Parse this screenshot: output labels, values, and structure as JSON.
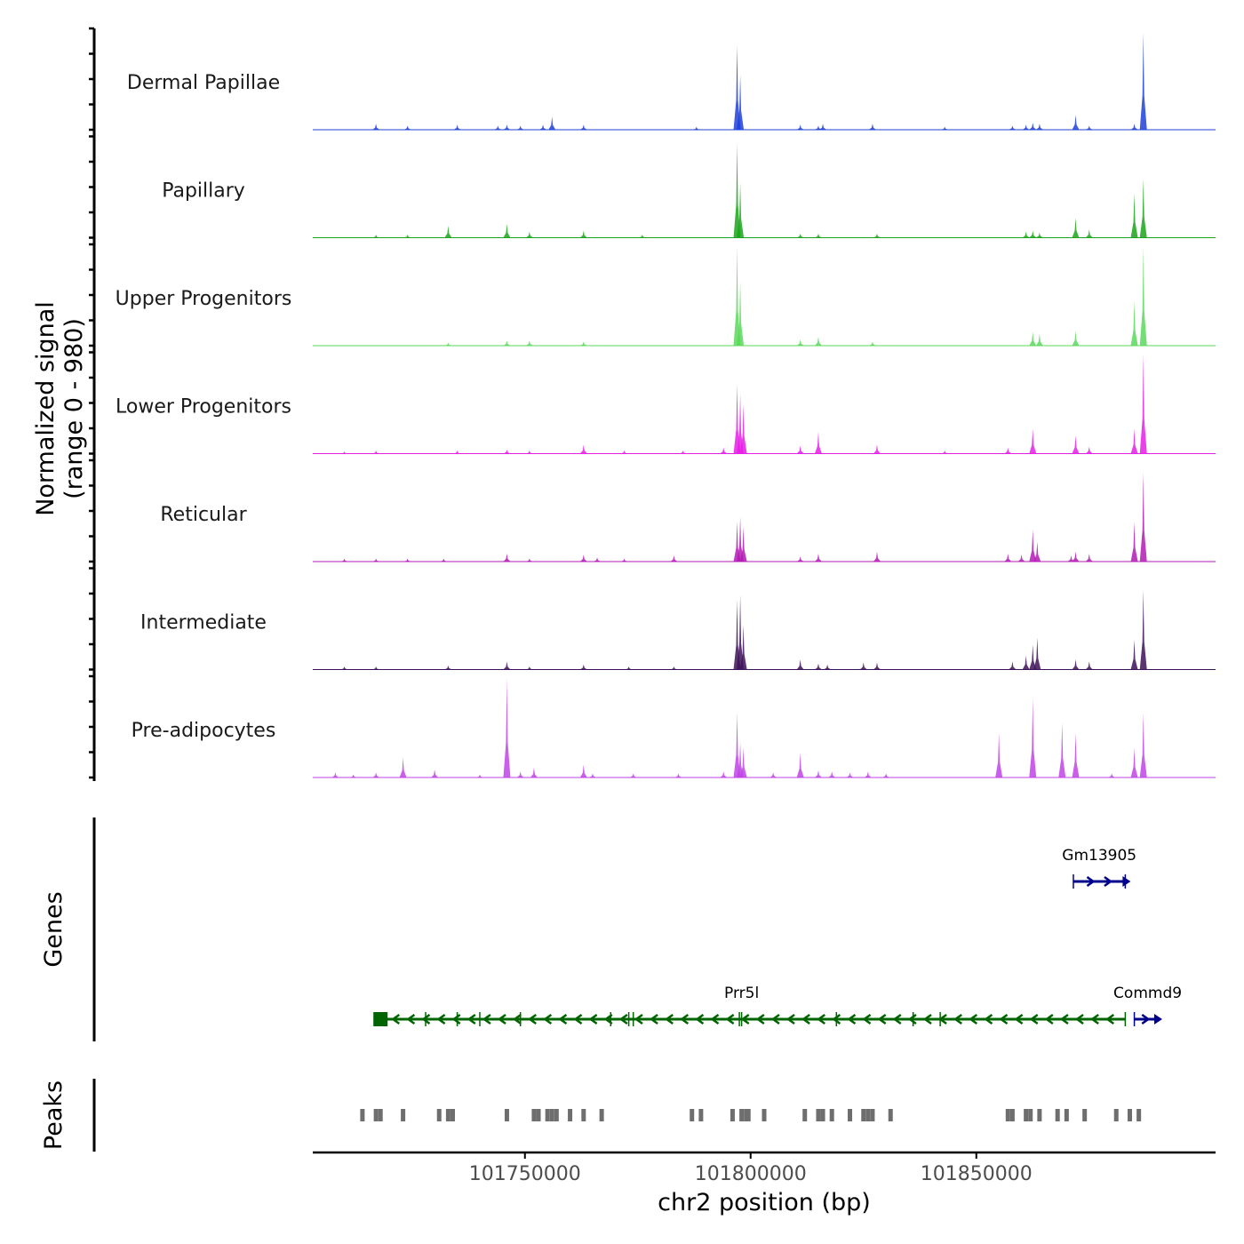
{
  "chart_data": {
    "type": "area",
    "title": "",
    "xlabel": "chr2 position (bp)",
    "ylabel": "Normalized signal\n(range 0 - 980)",
    "xlim": [
      101703000,
      101903000
    ],
    "x_ticks": [
      "101750000",
      "101800000",
      "101850000"
    ],
    "x_tick_values": [
      101750000,
      101800000,
      101850000
    ],
    "signal_range": [
      0,
      980
    ],
    "tracks": [
      {
        "name": "Dermal Papillae",
        "color": "#1e3fd9",
        "peaks": [
          [
            101717000,
            0.06
          ],
          [
            101724000,
            0.04
          ],
          [
            101735000,
            0.05
          ],
          [
            101744000,
            0.04
          ],
          [
            101746000,
            0.05
          ],
          [
            101749000,
            0.04
          ],
          [
            101754000,
            0.05
          ],
          [
            101756000,
            0.13
          ],
          [
            101763000,
            0.05
          ],
          [
            101788000,
            0.03
          ],
          [
            101797000,
            0.85
          ],
          [
            101797700,
            0.55
          ],
          [
            101811000,
            0.05
          ],
          [
            101815000,
            0.04
          ],
          [
            101816000,
            0.06
          ],
          [
            101827000,
            0.06
          ],
          [
            101843000,
            0.03
          ],
          [
            101858000,
            0.04
          ],
          [
            101861000,
            0.05
          ],
          [
            101862500,
            0.07
          ],
          [
            101864000,
            0.06
          ],
          [
            101872000,
            0.15
          ],
          [
            101875000,
            0.04
          ],
          [
            101885000,
            0.06
          ],
          [
            101887000,
            0.98
          ]
        ]
      },
      {
        "name": "Papillary",
        "color": "#1aa51a",
        "peaks": [
          [
            101717000,
            0.03
          ],
          [
            101724000,
            0.03
          ],
          [
            101733000,
            0.12
          ],
          [
            101746000,
            0.14
          ],
          [
            101751000,
            0.06
          ],
          [
            101763000,
            0.07
          ],
          [
            101776000,
            0.03
          ],
          [
            101797000,
            0.95
          ],
          [
            101797700,
            0.55
          ],
          [
            101811000,
            0.04
          ],
          [
            101815000,
            0.04
          ],
          [
            101828000,
            0.04
          ],
          [
            101861000,
            0.06
          ],
          [
            101862500,
            0.07
          ],
          [
            101864000,
            0.05
          ],
          [
            101872000,
            0.2
          ],
          [
            101875000,
            0.08
          ],
          [
            101885000,
            0.45
          ],
          [
            101887000,
            0.6
          ]
        ]
      },
      {
        "name": "Upper Progenitors",
        "color": "#5ad85a",
        "peaks": [
          [
            101733000,
            0.03
          ],
          [
            101746000,
            0.05
          ],
          [
            101751000,
            0.05
          ],
          [
            101763000,
            0.04
          ],
          [
            101797000,
            1.0
          ],
          [
            101797700,
            0.65
          ],
          [
            101811000,
            0.06
          ],
          [
            101815000,
            0.09
          ],
          [
            101827000,
            0.04
          ],
          [
            101862500,
            0.14
          ],
          [
            101864000,
            0.12
          ],
          [
            101872000,
            0.15
          ],
          [
            101885000,
            0.45
          ],
          [
            101887000,
            1.0
          ]
        ]
      },
      {
        "name": "Lower Progenitors",
        "color": "#e61ee6",
        "peaks": [
          [
            101710000,
            0.02
          ],
          [
            101717000,
            0.03
          ],
          [
            101735000,
            0.03
          ],
          [
            101746000,
            0.04
          ],
          [
            101751000,
            0.03
          ],
          [
            101763000,
            0.09
          ],
          [
            101772000,
            0.03
          ],
          [
            101785000,
            0.03
          ],
          [
            101794000,
            0.06
          ],
          [
            101797000,
            0.7
          ],
          [
            101797700,
            0.6
          ],
          [
            101798400,
            0.5
          ],
          [
            101811000,
            0.08
          ],
          [
            101815000,
            0.22
          ],
          [
            101828000,
            0.09
          ],
          [
            101843000,
            0.03
          ],
          [
            101857000,
            0.06
          ],
          [
            101862500,
            0.25
          ],
          [
            101872000,
            0.18
          ],
          [
            101875000,
            0.07
          ],
          [
            101885000,
            0.25
          ],
          [
            101887000,
            1.0
          ]
        ]
      },
      {
        "name": "Reticular",
        "color": "#b31ab3",
        "peaks": [
          [
            101710000,
            0.03
          ],
          [
            101717000,
            0.03
          ],
          [
            101724000,
            0.03
          ],
          [
            101732000,
            0.03
          ],
          [
            101746000,
            0.08
          ],
          [
            101751000,
            0.03
          ],
          [
            101763000,
            0.07
          ],
          [
            101766000,
            0.04
          ],
          [
            101772000,
            0.03
          ],
          [
            101783000,
            0.06
          ],
          [
            101797000,
            0.4
          ],
          [
            101797700,
            0.45
          ],
          [
            101798400,
            0.35
          ],
          [
            101811000,
            0.05
          ],
          [
            101815000,
            0.08
          ],
          [
            101828000,
            0.1
          ],
          [
            101857000,
            0.08
          ],
          [
            101860000,
            0.07
          ],
          [
            101862500,
            0.32
          ],
          [
            101863500,
            0.2
          ],
          [
            101871000,
            0.06
          ],
          [
            101872000,
            0.1
          ],
          [
            101875000,
            0.08
          ],
          [
            101885000,
            0.4
          ],
          [
            101887000,
            0.9
          ]
        ]
      },
      {
        "name": "Intermediate",
        "color": "#3d1258",
        "peaks": [
          [
            101710000,
            0.03
          ],
          [
            101717000,
            0.03
          ],
          [
            101733000,
            0.04
          ],
          [
            101746000,
            0.08
          ],
          [
            101751000,
            0.03
          ],
          [
            101763000,
            0.05
          ],
          [
            101773000,
            0.03
          ],
          [
            101783000,
            0.03
          ],
          [
            101797000,
            0.7
          ],
          [
            101797700,
            0.75
          ],
          [
            101798400,
            0.45
          ],
          [
            101811000,
            0.1
          ],
          [
            101815000,
            0.06
          ],
          [
            101817000,
            0.05
          ],
          [
            101825000,
            0.07
          ],
          [
            101828000,
            0.07
          ],
          [
            101858000,
            0.08
          ],
          [
            101861000,
            0.14
          ],
          [
            101862500,
            0.25
          ],
          [
            101863500,
            0.32
          ],
          [
            101872000,
            0.1
          ],
          [
            101875000,
            0.08
          ],
          [
            101885000,
            0.3
          ],
          [
            101887000,
            0.8
          ]
        ]
      },
      {
        "name": "Pre-adipocytes",
        "color": "#c043e6",
        "peaks": [
          [
            101708000,
            0.05
          ],
          [
            101712000,
            0.03
          ],
          [
            101717000,
            0.05
          ],
          [
            101723000,
            0.2
          ],
          [
            101730000,
            0.08
          ],
          [
            101740000,
            0.03
          ],
          [
            101746000,
            1.0
          ],
          [
            101749000,
            0.06
          ],
          [
            101752000,
            0.1
          ],
          [
            101763000,
            0.13
          ],
          [
            101765000,
            0.04
          ],
          [
            101774000,
            0.04
          ],
          [
            101784000,
            0.04
          ],
          [
            101794000,
            0.06
          ],
          [
            101797000,
            0.65
          ],
          [
            101797700,
            0.35
          ],
          [
            101798400,
            0.3
          ],
          [
            101805000,
            0.05
          ],
          [
            101811000,
            0.25
          ],
          [
            101815000,
            0.07
          ],
          [
            101818000,
            0.06
          ],
          [
            101822000,
            0.05
          ],
          [
            101826000,
            0.06
          ],
          [
            101830000,
            0.04
          ],
          [
            101855000,
            0.45
          ],
          [
            101862500,
            0.8
          ],
          [
            101869000,
            0.55
          ],
          [
            101872000,
            0.45
          ],
          [
            101880000,
            0.04
          ],
          [
            101885000,
            0.3
          ],
          [
            101887000,
            0.65
          ]
        ]
      }
    ],
    "genes": [
      {
        "name": "Gm13905",
        "start": 101871500,
        "end": 101883000,
        "strand": "+",
        "row": 1,
        "color": "#00008b",
        "exons": [
          101871500,
          101883000
        ]
      },
      {
        "name": "Prr5l",
        "start": 101718000,
        "end": 101883000,
        "strand": "-",
        "row": 2,
        "color": "#006400",
        "label_pos": 101798000,
        "exons": [
          101718000,
          101728000,
          101735000,
          101740000,
          101749000,
          101769000,
          101773000,
          101774000,
          101797500,
          101798000,
          101819000,
          101836000,
          101842000,
          101883000
        ]
      },
      {
        "name": "Commd9",
        "start": 101885000,
        "end": 101890000,
        "strand": "+",
        "row": 2,
        "color": "#00008b",
        "exons": [
          101885000
        ]
      }
    ],
    "peaks_track": [
      101714000,
      101717000,
      101718000,
      101723000,
      101731000,
      101733000,
      101734000,
      101746000,
      101752000,
      101753000,
      101755000,
      101756000,
      101757000,
      101760000,
      101763000,
      101767000,
      101787000,
      101789000,
      101796000,
      101798000,
      101799000,
      101799500,
      101803000,
      101812000,
      101815000,
      101816000,
      101818000,
      101822000,
      101825000,
      101826000,
      101827000,
      101831000,
      101857000,
      101858000,
      101861000,
      101862000,
      101864000,
      101868000,
      101870000,
      101874000,
      101881000,
      101884000,
      101886000
    ],
    "panel_labels": {
      "genes": "Genes",
      "peaks": "Peaks"
    }
  }
}
